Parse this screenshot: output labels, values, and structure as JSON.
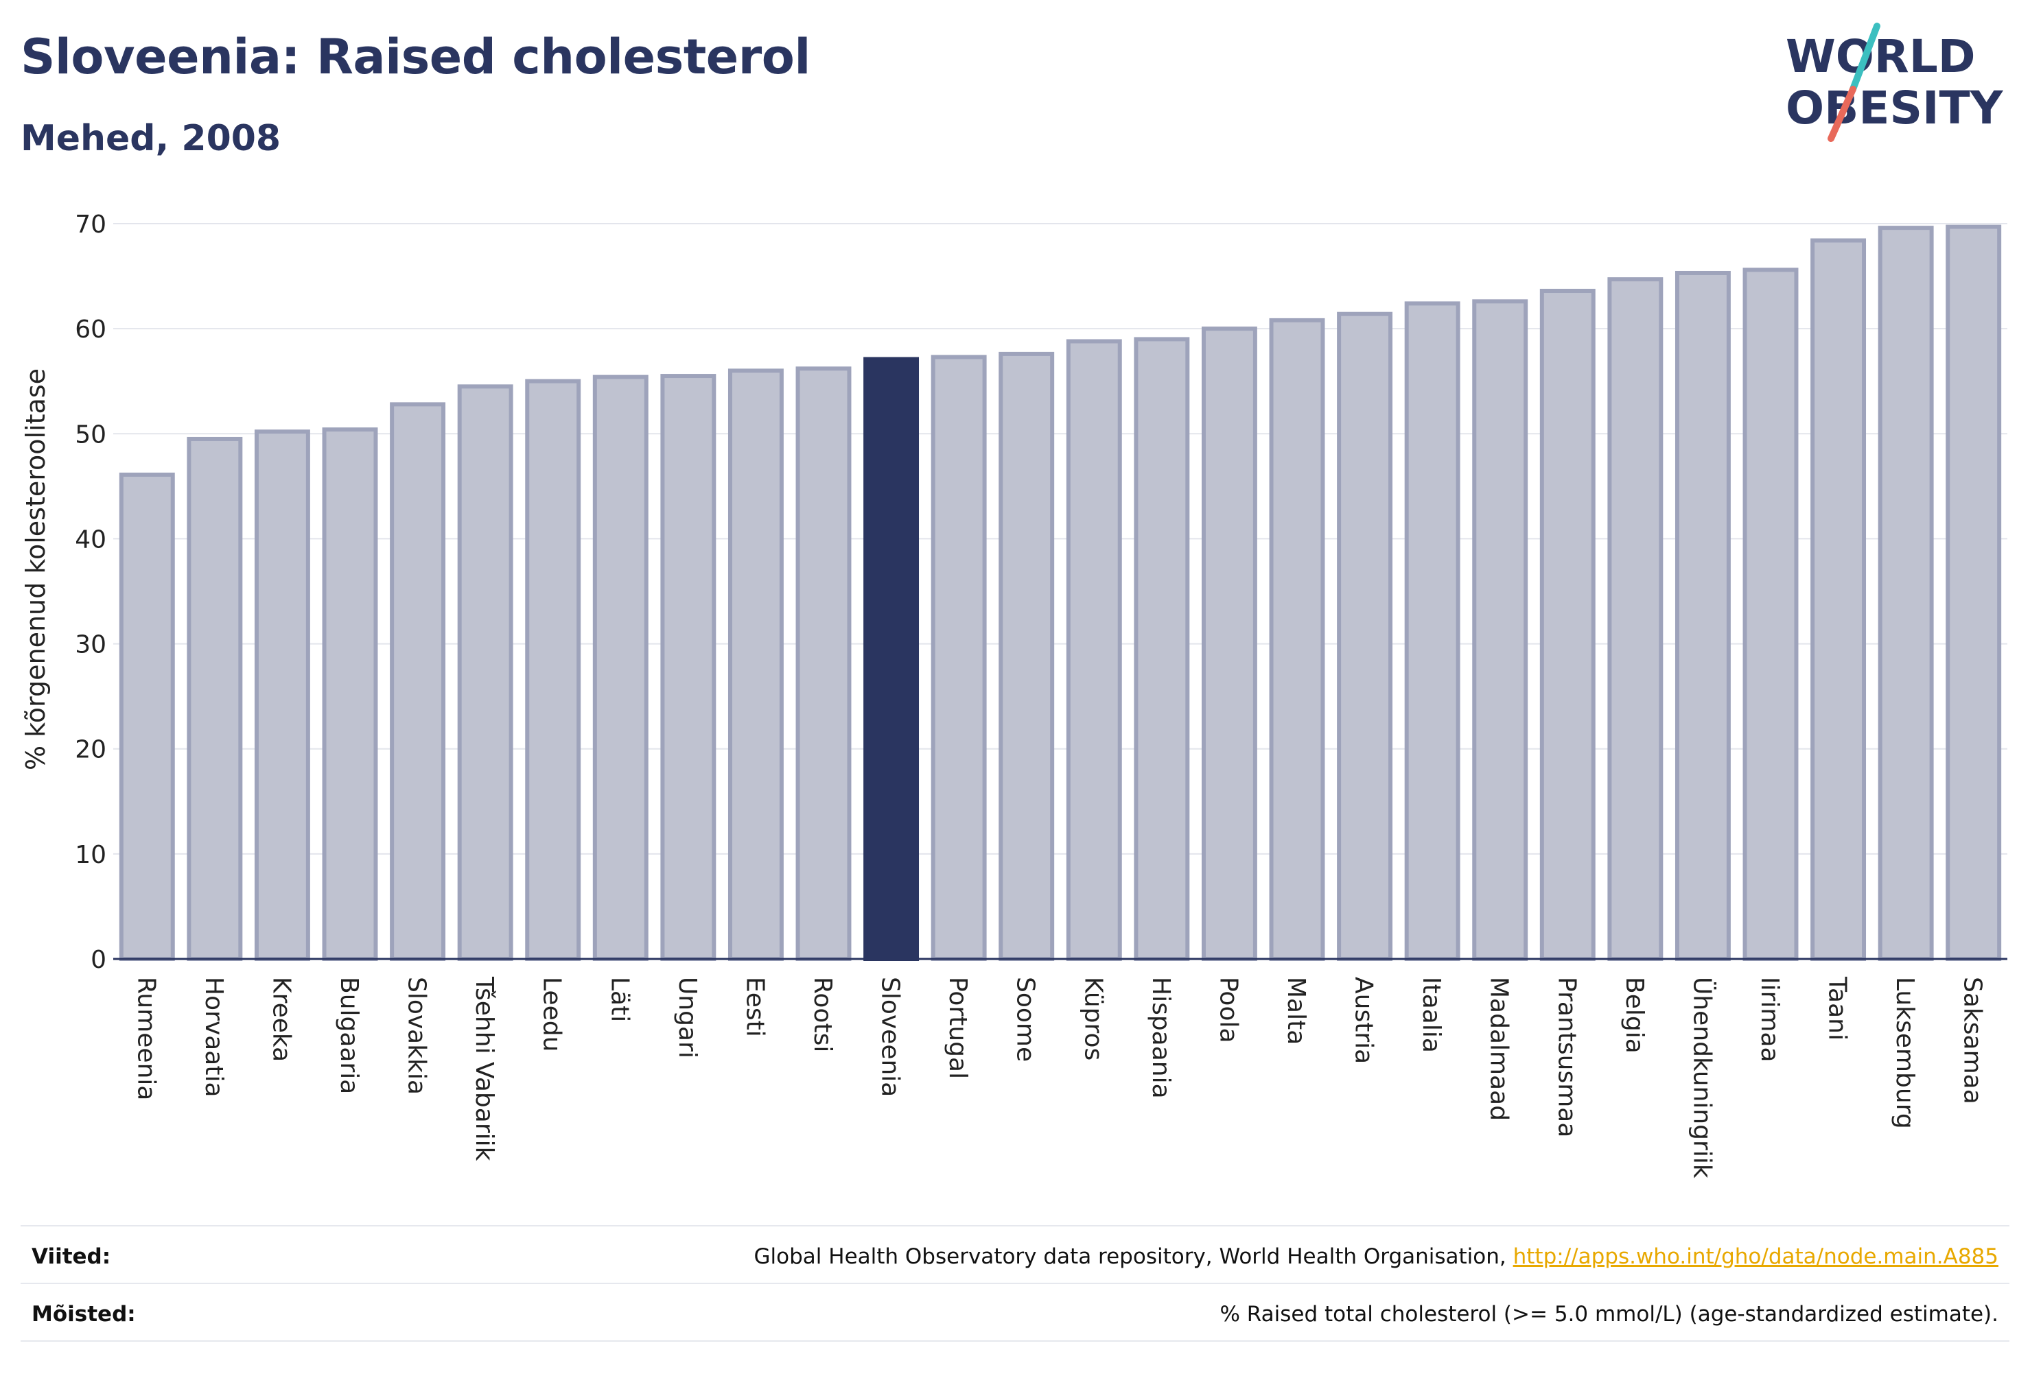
{
  "header": {
    "title": "Sloveenia: Raised cholesterol",
    "subtitle": "Mehed, 2008"
  },
  "logo": {
    "line1": "WORLD",
    "line2": "OBESITY",
    "colors": {
      "text": "#2a3560",
      "slash_top": "#3cbfc0",
      "slash_bottom": "#e8695a"
    }
  },
  "colors": {
    "bar_fill": "#bfc2d0",
    "bar_stroke": "#9ea3bb",
    "highlight": "#2a3560",
    "grid": "#e3e5ec",
    "axis": "#2a3560"
  },
  "chart_data": {
    "type": "bar",
    "ylabel": "% kõrgenenud kolesteroolitase",
    "ylim": [
      0,
      70
    ],
    "yticks": [
      0,
      10,
      20,
      30,
      40,
      50,
      60,
      70
    ],
    "grid": true,
    "highlight_category": "Sloveenia",
    "categories": [
      "Rumeenia",
      "Horvaatia",
      "Kreeka",
      "Bulgaaria",
      "Slovakkia",
      "Tšehhi Vabariik",
      "Leedu",
      "Läti",
      "Ungari",
      "Eesti",
      "Rootsi",
      "Sloveenia",
      "Portugal",
      "Soome",
      "Küpros",
      "Hispaania",
      "Poola",
      "Malta",
      "Austria",
      "Itaalia",
      "Madalmaad",
      "Prantsusmaa",
      "Belgia",
      "Ühendkuningriik",
      "Iirimaa",
      "Taani",
      "Luksemburg",
      "Saksamaa"
    ],
    "values": [
      46.1,
      49.5,
      50.2,
      50.4,
      52.8,
      54.5,
      55.0,
      55.4,
      55.5,
      56.0,
      56.2,
      57.1,
      57.3,
      57.6,
      58.8,
      59.0,
      60.0,
      60.8,
      61.4,
      62.4,
      62.6,
      63.6,
      64.7,
      65.3,
      65.6,
      68.4,
      69.6,
      69.7
    ]
  },
  "footer": {
    "sources_label": "Viited:",
    "sources_text": "Global Health Observatory data repository, World Health Organisation, ",
    "sources_link": "http://apps.who.int/gho/data/node.main.A885",
    "definitions_label": "Mõisted:",
    "definitions_text": "% Raised total cholesterol (>= 5.0 mmol/L) (age-standardized estimate)."
  }
}
